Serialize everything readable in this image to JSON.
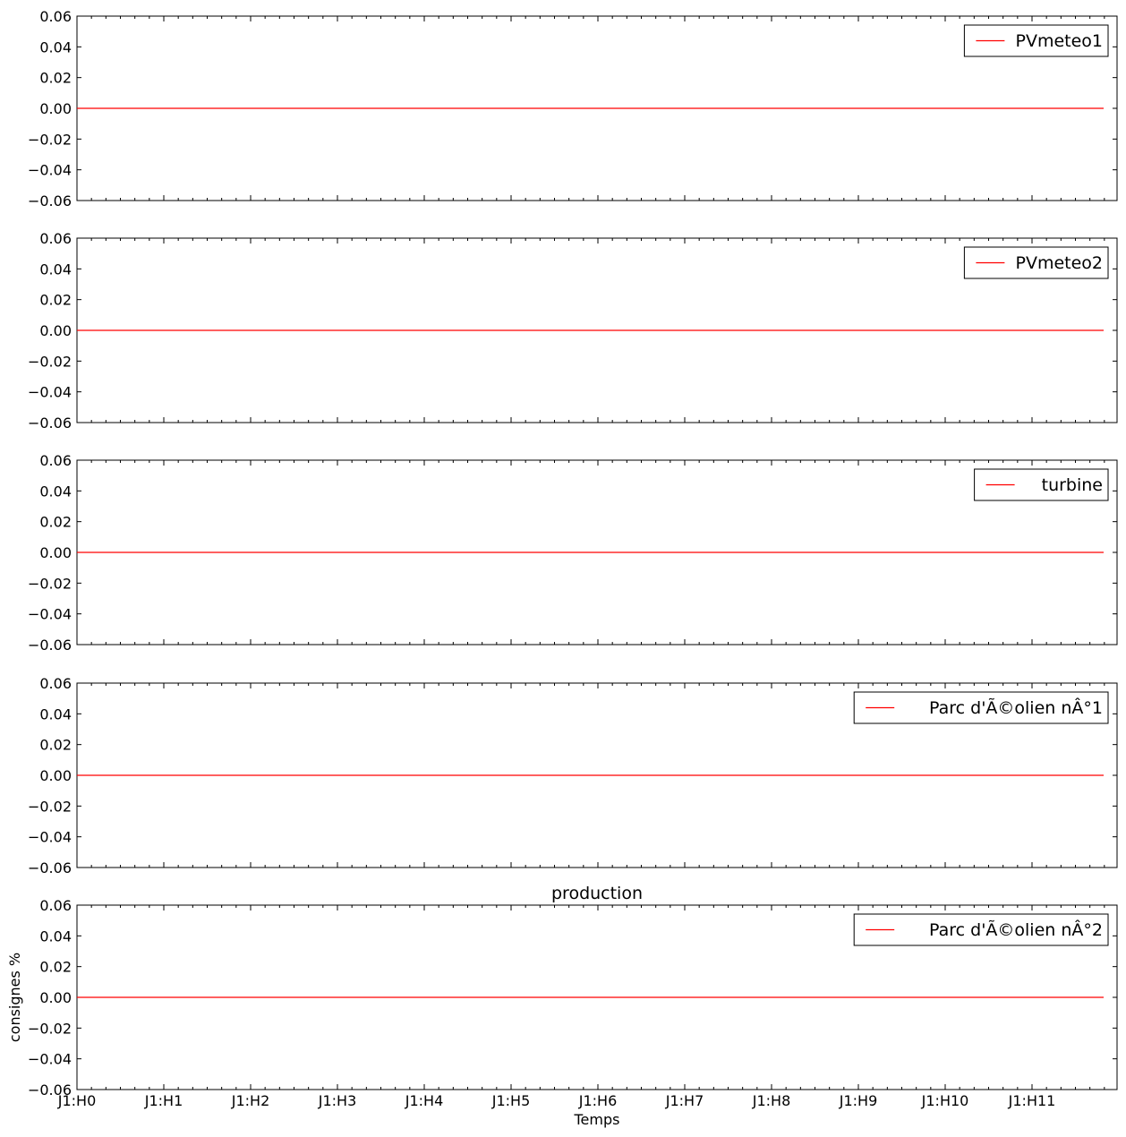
{
  "chart_data": [
    {
      "type": "line",
      "x": [
        "J1:H0",
        "J1:H1",
        "J1:H2",
        "J1:H3",
        "J1:H4",
        "J1:H5",
        "J1:H6",
        "J1:H7",
        "J1:H8",
        "J1:H9",
        "J1:H10",
        "J1:H11"
      ],
      "ylim": [
        -0.06,
        0.06
      ],
      "yticks": [
        "0.06",
        "0.04",
        "0.02",
        "0.00",
        "−0.02",
        "−0.04",
        "−0.06"
      ],
      "series": [
        {
          "name": "PVmeteo1",
          "color": "#ff0000",
          "values": [
            0,
            0,
            0,
            0,
            0,
            0,
            0,
            0,
            0,
            0,
            0,
            0
          ]
        }
      ],
      "legend": "top-right",
      "grid": false
    },
    {
      "type": "line",
      "x": [
        "J1:H0",
        "J1:H1",
        "J1:H2",
        "J1:H3",
        "J1:H4",
        "J1:H5",
        "J1:H6",
        "J1:H7",
        "J1:H8",
        "J1:H9",
        "J1:H10",
        "J1:H11"
      ],
      "ylim": [
        -0.06,
        0.06
      ],
      "yticks": [
        "0.06",
        "0.04",
        "0.02",
        "0.00",
        "−0.02",
        "−0.04",
        "−0.06"
      ],
      "series": [
        {
          "name": "PVmeteo2",
          "color": "#ff0000",
          "values": [
            0,
            0,
            0,
            0,
            0,
            0,
            0,
            0,
            0,
            0,
            0,
            0
          ]
        }
      ],
      "legend": "top-right",
      "grid": false
    },
    {
      "type": "line",
      "x": [
        "J1:H0",
        "J1:H1",
        "J1:H2",
        "J1:H3",
        "J1:H4",
        "J1:H5",
        "J1:H6",
        "J1:H7",
        "J1:H8",
        "J1:H9",
        "J1:H10",
        "J1:H11"
      ],
      "ylim": [
        -0.06,
        0.06
      ],
      "yticks": [
        "0.06",
        "0.04",
        "0.02",
        "0.00",
        "−0.02",
        "−0.04",
        "−0.06"
      ],
      "series": [
        {
          "name": "turbine",
          "color": "#ff0000",
          "values": [
            0,
            0,
            0,
            0,
            0,
            0,
            0,
            0,
            0,
            0,
            0,
            0
          ]
        }
      ],
      "legend": "top-right",
      "grid": false
    },
    {
      "type": "line",
      "x": [
        "J1:H0",
        "J1:H1",
        "J1:H2",
        "J1:H3",
        "J1:H4",
        "J1:H5",
        "J1:H6",
        "J1:H7",
        "J1:H8",
        "J1:H9",
        "J1:H10",
        "J1:H11"
      ],
      "ylim": [
        -0.06,
        0.06
      ],
      "yticks": [
        "0.06",
        "0.04",
        "0.02",
        "0.00",
        "−0.02",
        "−0.04",
        "−0.06"
      ],
      "series": [
        {
          "name": "Parc d'Ã©olien nÂ°1",
          "color": "#ff0000",
          "values": [
            0,
            0,
            0,
            0,
            0,
            0,
            0,
            0,
            0,
            0,
            0,
            0
          ]
        }
      ],
      "legend": "top-right",
      "grid": false
    },
    {
      "type": "line",
      "title": "production",
      "xlabel": "Temps",
      "ylabel": "consignes %",
      "x": [
        "J1:H0",
        "J1:H1",
        "J1:H2",
        "J1:H3",
        "J1:H4",
        "J1:H5",
        "J1:H6",
        "J1:H7",
        "J1:H8",
        "J1:H9",
        "J1:H10",
        "J1:H11"
      ],
      "xticks": [
        "J1:H0",
        "J1:H1",
        "J1:H2",
        "J1:H3",
        "J1:H4",
        "J1:H5",
        "J1:H6",
        "J1:H7",
        "J1:H8",
        "J1:H9",
        "J1:H10",
        "J1:H11"
      ],
      "ylim": [
        -0.06,
        0.06
      ],
      "yticks": [
        "0.06",
        "0.04",
        "0.02",
        "0.00",
        "−0.02",
        "−0.04",
        "−0.06"
      ],
      "series": [
        {
          "name": "Parc d'Ã©olien nÂ°2",
          "color": "#ff0000",
          "values": [
            0,
            0,
            0,
            0,
            0,
            0,
            0,
            0,
            0,
            0,
            0,
            0
          ]
        }
      ],
      "legend": "top-right",
      "grid": false
    }
  ]
}
